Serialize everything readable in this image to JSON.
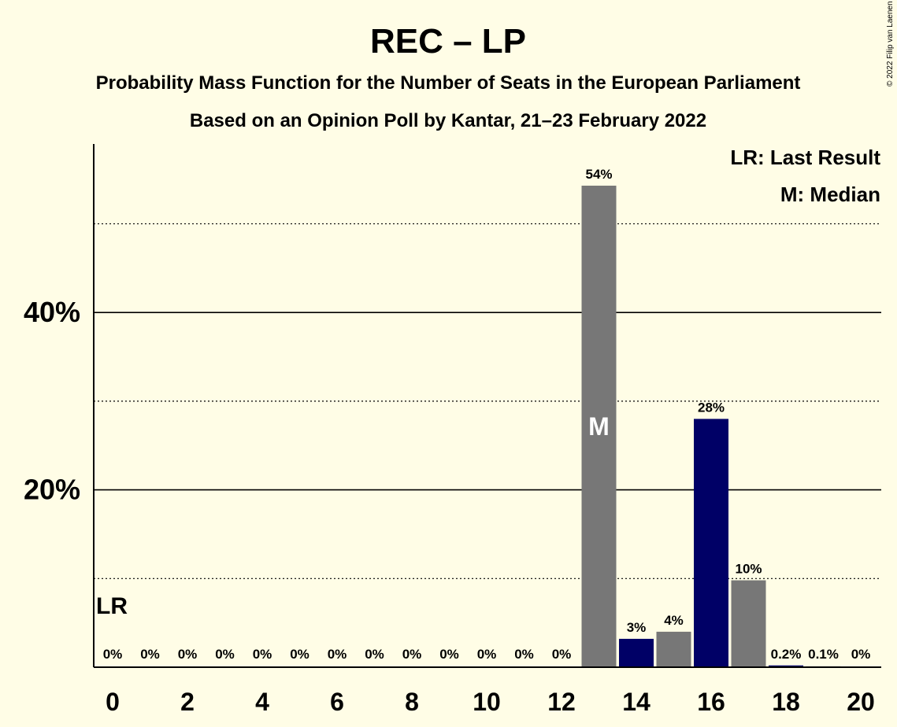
{
  "chart_data": {
    "type": "bar",
    "title": "REC – LP",
    "subtitle": "Probability Mass Function for the Number of Seats in the European Parliament",
    "subtitle2": "Based on an Opinion Poll by Kantar, 21–23 February 2022",
    "copyright": "© 2022 Filip van Laenen",
    "legend": {
      "position": "top-right",
      "entries": [
        "LR: Last Result",
        "M: Median"
      ]
    },
    "x": [
      0,
      1,
      2,
      3,
      4,
      5,
      6,
      7,
      8,
      9,
      10,
      11,
      12,
      13,
      14,
      15,
      16,
      17,
      18,
      19,
      20
    ],
    "x_tick_labels": [
      "0",
      "2",
      "4",
      "6",
      "8",
      "10",
      "12",
      "14",
      "16",
      "18",
      "20"
    ],
    "values": [
      0,
      0,
      0,
      0,
      0,
      0,
      0,
      0,
      0,
      0,
      0,
      0,
      0,
      54.3,
      3.2,
      4.0,
      28.0,
      9.8,
      0.2,
      0.1,
      0
    ],
    "value_labels": [
      "0%",
      "0%",
      "0%",
      "0%",
      "0%",
      "0%",
      "0%",
      "0%",
      "0%",
      "0%",
      "0%",
      "0%",
      "0%",
      "54%",
      "3%",
      "4%",
      "28%",
      "10%",
      "0.2%",
      "0.1%",
      "0%"
    ],
    "bar_colors": [
      "#777777",
      "#777777",
      "#777777",
      "#777777",
      "#777777",
      "#777777",
      "#777777",
      "#777777",
      "#777777",
      "#777777",
      "#777777",
      "#777777",
      "#777777",
      "#777777",
      "#000066",
      "#777777",
      "#000066",
      "#777777",
      "#000066",
      "#777777",
      "#777777"
    ],
    "ylim": [
      0,
      59
    ],
    "y_ticks": [
      {
        "value": 20,
        "label": "20%"
      },
      {
        "value": 40,
        "label": "40%"
      }
    ],
    "gridlines_solid": [
      20,
      40
    ],
    "gridlines_dotted": [
      10,
      30,
      50
    ],
    "last_result": {
      "seat": 0,
      "label": "LR"
    },
    "median": {
      "seat": 13,
      "label": "M"
    }
  }
}
